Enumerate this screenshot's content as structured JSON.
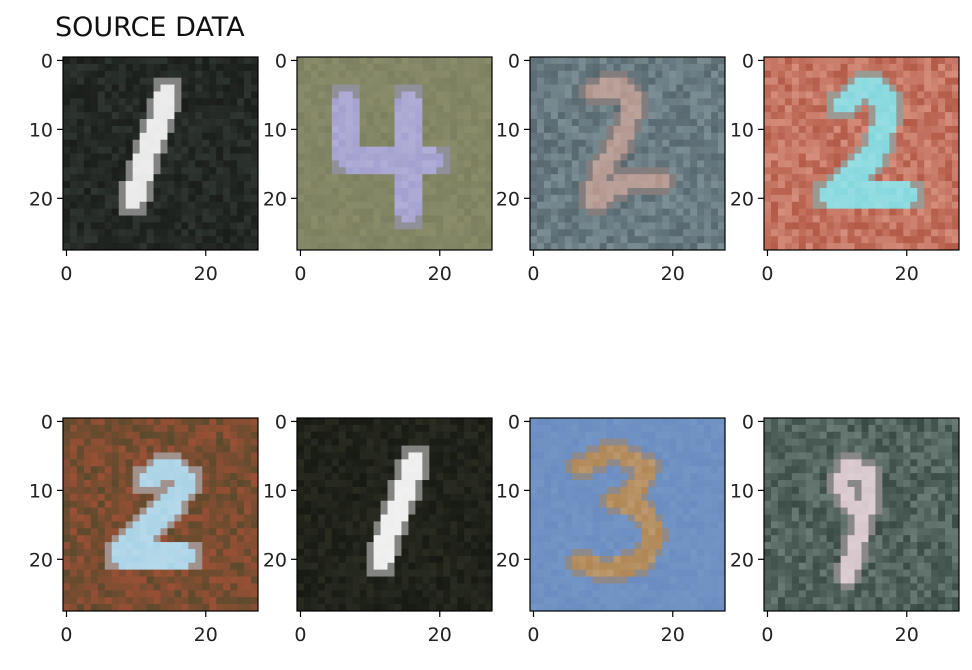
{
  "title": "SOURCE DATA",
  "chart_data": {
    "type": "image-grid",
    "rows": 2,
    "cols": 4,
    "xlim": [
      0,
      27
    ],
    "ylim": [
      27,
      0
    ],
    "xticks": [
      0,
      20
    ],
    "yticks": [
      0,
      10,
      20
    ],
    "panels": [
      {
        "digit": "1",
        "bg": "#1a1d1a",
        "bg2": "#2f3631",
        "fg": "#e9e9e9",
        "path": [
          [
            15,
            5
          ],
          [
            14,
            9
          ],
          [
            12,
            14
          ],
          [
            11,
            18
          ],
          [
            10,
            21
          ]
        ],
        "stroke": 3
      },
      {
        "digit": "4",
        "bg": "#7c8060",
        "bg2": "#8a8c6a",
        "fg": "#a3a0cf",
        "path": [
          [
            7,
            6
          ],
          [
            7,
            15
          ],
          [
            20,
            15
          ]
        ],
        "path2": [
          [
            16,
            6
          ],
          [
            16,
            23
          ]
        ],
        "stroke": 3
      },
      {
        "digit": "2",
        "bg": "#56676e",
        "bg2": "#7c8f95",
        "fg": "#b0948c",
        "path": [
          [
            9,
            5
          ],
          [
            13,
            4
          ],
          [
            15,
            7
          ],
          [
            13,
            12
          ],
          [
            10,
            17
          ],
          [
            9,
            21
          ],
          [
            14,
            18
          ],
          [
            19,
            18
          ]
        ],
        "stroke": 2.6
      },
      {
        "digit": "2",
        "bg": "#b35a48",
        "bg2": "#d68f7c",
        "fg": "#84d8dd",
        "path": [
          [
            11,
            7
          ],
          [
            15,
            4
          ],
          [
            18,
            7
          ],
          [
            16,
            14
          ],
          [
            12,
            18
          ],
          [
            9,
            20
          ],
          [
            15,
            20
          ],
          [
            21,
            20
          ]
        ],
        "stroke": 3
      },
      {
        "digit": "2",
        "bg": "#9a5036",
        "bg2": "#5c4a2c",
        "fg": "#a9d3e6",
        "path": [
          [
            12,
            9
          ],
          [
            15,
            7
          ],
          [
            18,
            9
          ],
          [
            15,
            13
          ],
          [
            11,
            17
          ],
          [
            8,
            20
          ],
          [
            13,
            20
          ],
          [
            18,
            20
          ]
        ],
        "stroke": 3
      },
      {
        "digit": "1",
        "bg": "#171a13",
        "bg2": "#2a2c22",
        "fg": "#eeeeef",
        "path": [
          [
            17,
            6
          ],
          [
            15,
            12
          ],
          [
            13,
            17
          ],
          [
            12,
            21
          ]
        ],
        "stroke": 3
      },
      {
        "digit": "3",
        "bg": "#6b8cc0",
        "bg2": "#7396c6",
        "fg": "#b08755",
        "path": [
          [
            7,
            7
          ],
          [
            12,
            5
          ],
          [
            17,
            7
          ],
          [
            15,
            11
          ],
          [
            12,
            12
          ],
          [
            16,
            13
          ],
          [
            18,
            17
          ],
          [
            16,
            21
          ],
          [
            11,
            22
          ],
          [
            7,
            21
          ]
        ],
        "stroke": 2.4
      },
      {
        "digit": "9",
        "bg": "#3a4a44",
        "bg2": "#6b7b75",
        "fg": "#d6c6cc",
        "path": [
          [
            13,
            13
          ],
          [
            11,
            10
          ],
          [
            12,
            7
          ],
          [
            15,
            8
          ],
          [
            15,
            12
          ],
          [
            13,
            13
          ],
          [
            15,
            12
          ],
          [
            13,
            19
          ],
          [
            12,
            23
          ]
        ],
        "stroke": 2.2
      }
    ]
  }
}
